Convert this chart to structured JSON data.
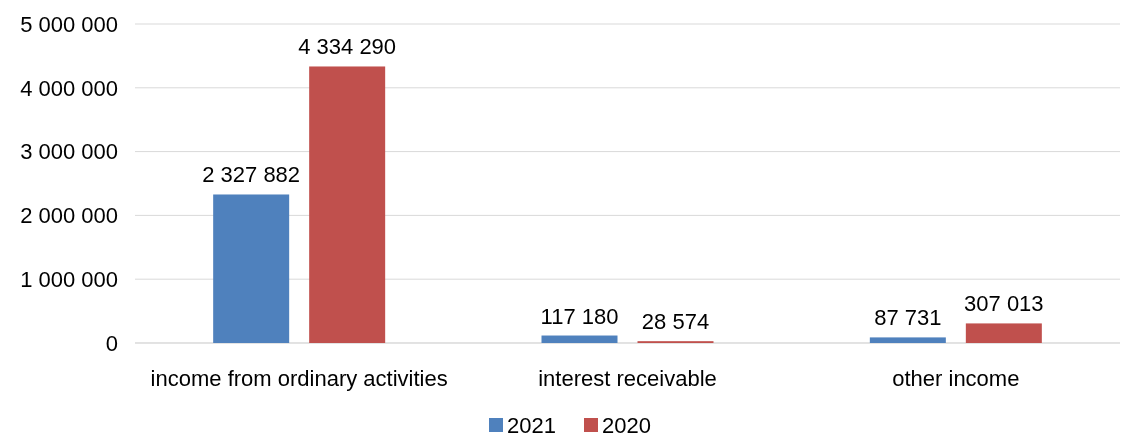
{
  "chart_data": {
    "type": "bar",
    "categories": [
      "income from ordinary activities",
      "interest receivable",
      "other income"
    ],
    "series": [
      {
        "name": "2021",
        "color": "#4f81bd",
        "values": [
          2327882,
          117180,
          87731
        ],
        "value_labels": [
          "2 327 882",
          "117 180",
          "87 731"
        ]
      },
      {
        "name": "2020",
        "color": "#c0504d",
        "values": [
          4334290,
          28574,
          307013
        ],
        "value_labels": [
          "4 334 290",
          "28 574",
          "307 013"
        ]
      }
    ],
    "ylim": [
      0,
      5000000
    ],
    "yticks": [
      {
        "value": 0,
        "label": "0"
      },
      {
        "value": 1000000,
        "label": "1 000 000"
      },
      {
        "value": 2000000,
        "label": "2 000 000"
      },
      {
        "value": 3000000,
        "label": "3 000 000"
      },
      {
        "value": 4000000,
        "label": "4 000 000"
      },
      {
        "value": 5000000,
        "label": "5 000 000"
      }
    ],
    "grid": "y",
    "legend": "bottom"
  }
}
